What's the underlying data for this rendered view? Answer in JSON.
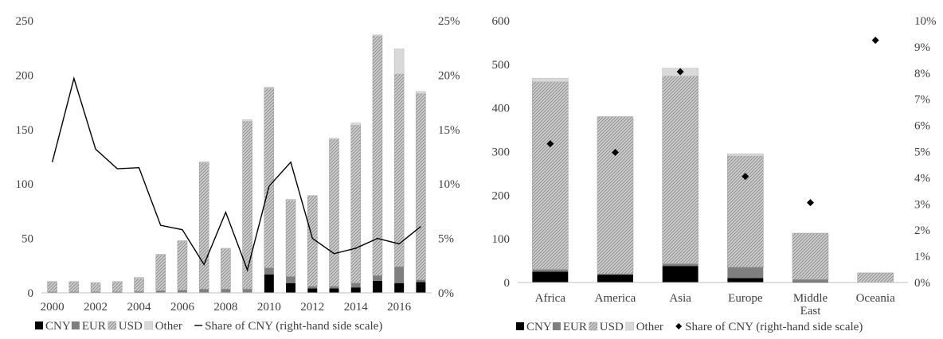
{
  "colors": {
    "cny": "#000000",
    "eur": "#7f7f7f",
    "usd": "#d0d0d0",
    "usd_hatch": "#8c8c8c",
    "other": "#d9d9d9",
    "axis": "#bfbfbf",
    "text": "#404040"
  },
  "chart_data": [
    {
      "type": "bar",
      "stacked": true,
      "title": "",
      "xlabel": "",
      "ylabel": "",
      "categories": [
        "2000",
        "2001",
        "2002",
        "2003",
        "2004",
        "2005",
        "2006",
        "2007",
        "2008",
        "2009",
        "2010",
        "2011",
        "2012",
        "2013",
        "2014",
        "2015",
        "2016",
        "2017"
      ],
      "x_tick_labels": [
        "2000",
        "2002",
        "2004",
        "2006",
        "2008",
        "2010",
        "2012",
        "2014",
        "2016"
      ],
      "ylim": [
        0,
        250
      ],
      "y_ticks": [
        0,
        50,
        100,
        150,
        200,
        250
      ],
      "y2lim": [
        0,
        0.25
      ],
      "y2_ticks": [
        "0%",
        "5%",
        "10%",
        "15%",
        "20%",
        "25%"
      ],
      "grid": false,
      "legend_position": "bottom",
      "series": [
        {
          "name": "CNY",
          "values": [
            0.2,
            0.2,
            0.2,
            0.2,
            0.3,
            0.5,
            0.5,
            0.5,
            0.5,
            0.5,
            17,
            9,
            4,
            4,
            5,
            11,
            9,
            10
          ]
        },
        {
          "name": "EUR",
          "values": [
            0.8,
            0.8,
            0.8,
            0.8,
            1,
            1.5,
            2,
            3,
            3,
            3,
            6,
            6,
            2,
            2,
            4,
            5,
            15,
            2
          ]
        },
        {
          "name": "USD",
          "values": [
            9,
            9,
            8,
            9,
            12,
            33,
            45,
            116,
            37,
            154,
            165,
            70,
            83,
            135,
            145,
            220,
            177,
            171
          ]
        },
        {
          "name": "Other",
          "values": [
            0.5,
            0.5,
            0.5,
            0.5,
            1,
            0.5,
            0.5,
            1,
            0.5,
            1.5,
            1,
            1,
            0.5,
            1,
            2,
            1,
            23,
            2
          ]
        }
      ],
      "line_series": {
        "name": "Share of CNY (right-hand side scale)",
        "values": [
          0.12,
          0.197,
          0.132,
          0.114,
          0.115,
          0.062,
          0.058,
          0.026,
          0.074,
          0.021,
          0.098,
          0.12,
          0.05,
          0.036,
          0.041,
          0.05,
          0.045,
          0.061
        ]
      }
    },
    {
      "type": "bar",
      "stacked": true,
      "title": "",
      "xlabel": "",
      "ylabel": "",
      "categories": [
        "Africa",
        "America",
        "Asia",
        "Europe",
        "Middle East",
        "Oceania"
      ],
      "category_lines": [
        [
          "Africa"
        ],
        [
          "America"
        ],
        [
          "Asia"
        ],
        [
          "Europe"
        ],
        [
          "Middle",
          "East"
        ],
        [
          "Oceania"
        ]
      ],
      "ylim": [
        0,
        600
      ],
      "y_ticks": [
        0,
        100,
        200,
        300,
        400,
        500,
        600
      ],
      "y2lim": [
        0,
        0.1
      ],
      "y2_ticks": [
        "0%",
        "1%",
        "2%",
        "3%",
        "4%",
        "5%",
        "6%",
        "7%",
        "8%",
        "9%",
        "10%"
      ],
      "grid": false,
      "legend_position": "bottom",
      "series": [
        {
          "name": "CNY",
          "values": [
            25,
            18,
            38,
            10,
            2,
            0
          ]
        },
        {
          "name": "EUR",
          "values": [
            5,
            2,
            5,
            25,
            5,
            0
          ]
        },
        {
          "name": "USD",
          "values": [
            430,
            360,
            430,
            255,
            106,
            22
          ]
        },
        {
          "name": "Other",
          "values": [
            8,
            0,
            18,
            5,
            0,
            0
          ]
        }
      ],
      "marker_series": {
        "name": "Share of CNY (right-hand side scale)",
        "values": [
          0.053,
          0.0497,
          0.0805,
          0.0405,
          0.0305,
          0.0925
        ]
      }
    }
  ]
}
